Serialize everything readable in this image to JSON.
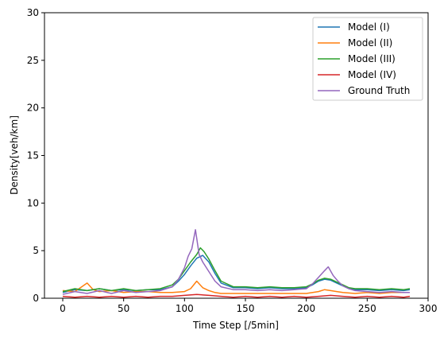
{
  "chart_data": {
    "type": "line",
    "title": "",
    "xlabel": "Time Step [/5min]",
    "ylabel": "Density[veh/km]",
    "xlim": [
      -15,
      300
    ],
    "ylim": [
      0,
      30
    ],
    "xticks": [
      0,
      50,
      100,
      150,
      200,
      250,
      300
    ],
    "yticks": [
      0,
      5,
      10,
      15,
      20,
      25,
      30
    ],
    "grid": false,
    "legend_position": "top-right",
    "series": [
      {
        "name": "Model (I)",
        "color": "#1f77b4",
        "x": [
          0,
          10,
          20,
          30,
          40,
          50,
          60,
          70,
          80,
          90,
          95,
          100,
          105,
          110,
          115,
          120,
          125,
          130,
          140,
          150,
          160,
          170,
          180,
          190,
          200,
          205,
          210,
          215,
          220,
          225,
          230,
          235,
          240,
          250,
          260,
          270,
          280,
          285
        ],
        "values": [
          0.6,
          0.9,
          0.8,
          1.0,
          0.8,
          0.9,
          0.8,
          0.9,
          0.9,
          1.2,
          1.8,
          2.5,
          3.4,
          4.2,
          4.5,
          3.8,
          2.6,
          1.6,
          1.1,
          1.1,
          1.0,
          1.1,
          1.0,
          1.0,
          1.1,
          1.4,
          1.8,
          2.0,
          1.9,
          1.6,
          1.3,
          1.0,
          0.9,
          0.9,
          0.8,
          0.9,
          0.8,
          0.9
        ]
      },
      {
        "name": "Model (II)",
        "color": "#ff7f0e",
        "x": [
          0,
          10,
          20,
          25,
          30,
          40,
          50,
          60,
          70,
          80,
          90,
          100,
          105,
          110,
          115,
          120,
          125,
          130,
          140,
          150,
          160,
          170,
          180,
          190,
          200,
          210,
          215,
          220,
          225,
          230,
          240,
          250,
          260,
          270,
          280,
          285
        ],
        "values": [
          0.8,
          0.7,
          1.6,
          0.9,
          0.7,
          0.8,
          0.6,
          0.7,
          0.7,
          0.6,
          0.6,
          0.7,
          1.0,
          1.8,
          1.1,
          0.8,
          0.6,
          0.5,
          0.5,
          0.5,
          0.5,
          0.5,
          0.5,
          0.5,
          0.5,
          0.7,
          0.9,
          0.8,
          0.7,
          0.6,
          0.5,
          0.6,
          0.5,
          0.6,
          0.6,
          0.6
        ]
      },
      {
        "name": "Model (III)",
        "color": "#2ca02c",
        "x": [
          0,
          10,
          20,
          30,
          40,
          50,
          60,
          70,
          80,
          90,
          95,
          100,
          105,
          110,
          113,
          116,
          120,
          125,
          130,
          140,
          150,
          160,
          170,
          180,
          190,
          200,
          205,
          210,
          215,
          220,
          225,
          230,
          235,
          240,
          250,
          260,
          270,
          280,
          285
        ],
        "values": [
          0.7,
          1.0,
          0.8,
          1.0,
          0.8,
          1.0,
          0.8,
          0.9,
          1.0,
          1.4,
          2.0,
          2.9,
          3.8,
          4.6,
          5.3,
          4.9,
          4.1,
          2.9,
          1.8,
          1.2,
          1.2,
          1.1,
          1.2,
          1.1,
          1.1,
          1.2,
          1.5,
          1.9,
          2.1,
          2.0,
          1.7,
          1.4,
          1.1,
          1.0,
          1.0,
          0.9,
          1.0,
          0.9,
          1.0
        ]
      },
      {
        "name": "Model (IV)",
        "color": "#d62728",
        "x": [
          0,
          10,
          20,
          30,
          40,
          50,
          60,
          70,
          80,
          90,
          100,
          110,
          120,
          130,
          140,
          150,
          160,
          170,
          180,
          190,
          200,
          210,
          220,
          230,
          240,
          250,
          260,
          270,
          280,
          285
        ],
        "values": [
          0.2,
          0.1,
          0.2,
          0.1,
          0.2,
          0.1,
          0.2,
          0.1,
          0.2,
          0.2,
          0.3,
          0.4,
          0.3,
          0.2,
          0.1,
          0.2,
          0.1,
          0.2,
          0.1,
          0.2,
          0.1,
          0.2,
          0.3,
          0.2,
          0.1,
          0.2,
          0.1,
          0.2,
          0.1,
          0.2
        ]
      },
      {
        "name": "Ground Truth",
        "color": "#9467bd",
        "x": [
          0,
          10,
          20,
          30,
          40,
          50,
          60,
          70,
          80,
          90,
          95,
          100,
          103,
          106,
          109,
          112,
          115,
          120,
          125,
          130,
          140,
          150,
          160,
          170,
          180,
          190,
          200,
          205,
          210,
          215,
          218,
          222,
          226,
          230,
          235,
          240,
          250,
          260,
          270,
          280,
          285
        ],
        "values": [
          0.4,
          0.7,
          0.5,
          0.8,
          0.5,
          0.8,
          0.6,
          0.7,
          0.8,
          1.2,
          2.0,
          3.2,
          4.4,
          5.2,
          7.2,
          4.6,
          3.8,
          2.8,
          1.8,
          1.2,
          0.9,
          0.9,
          0.8,
          0.9,
          0.8,
          0.9,
          1.0,
          1.5,
          2.2,
          2.9,
          3.3,
          2.4,
          1.8,
          1.3,
          1.0,
          0.8,
          0.7,
          0.6,
          0.7,
          0.6,
          0.6
        ]
      }
    ]
  }
}
